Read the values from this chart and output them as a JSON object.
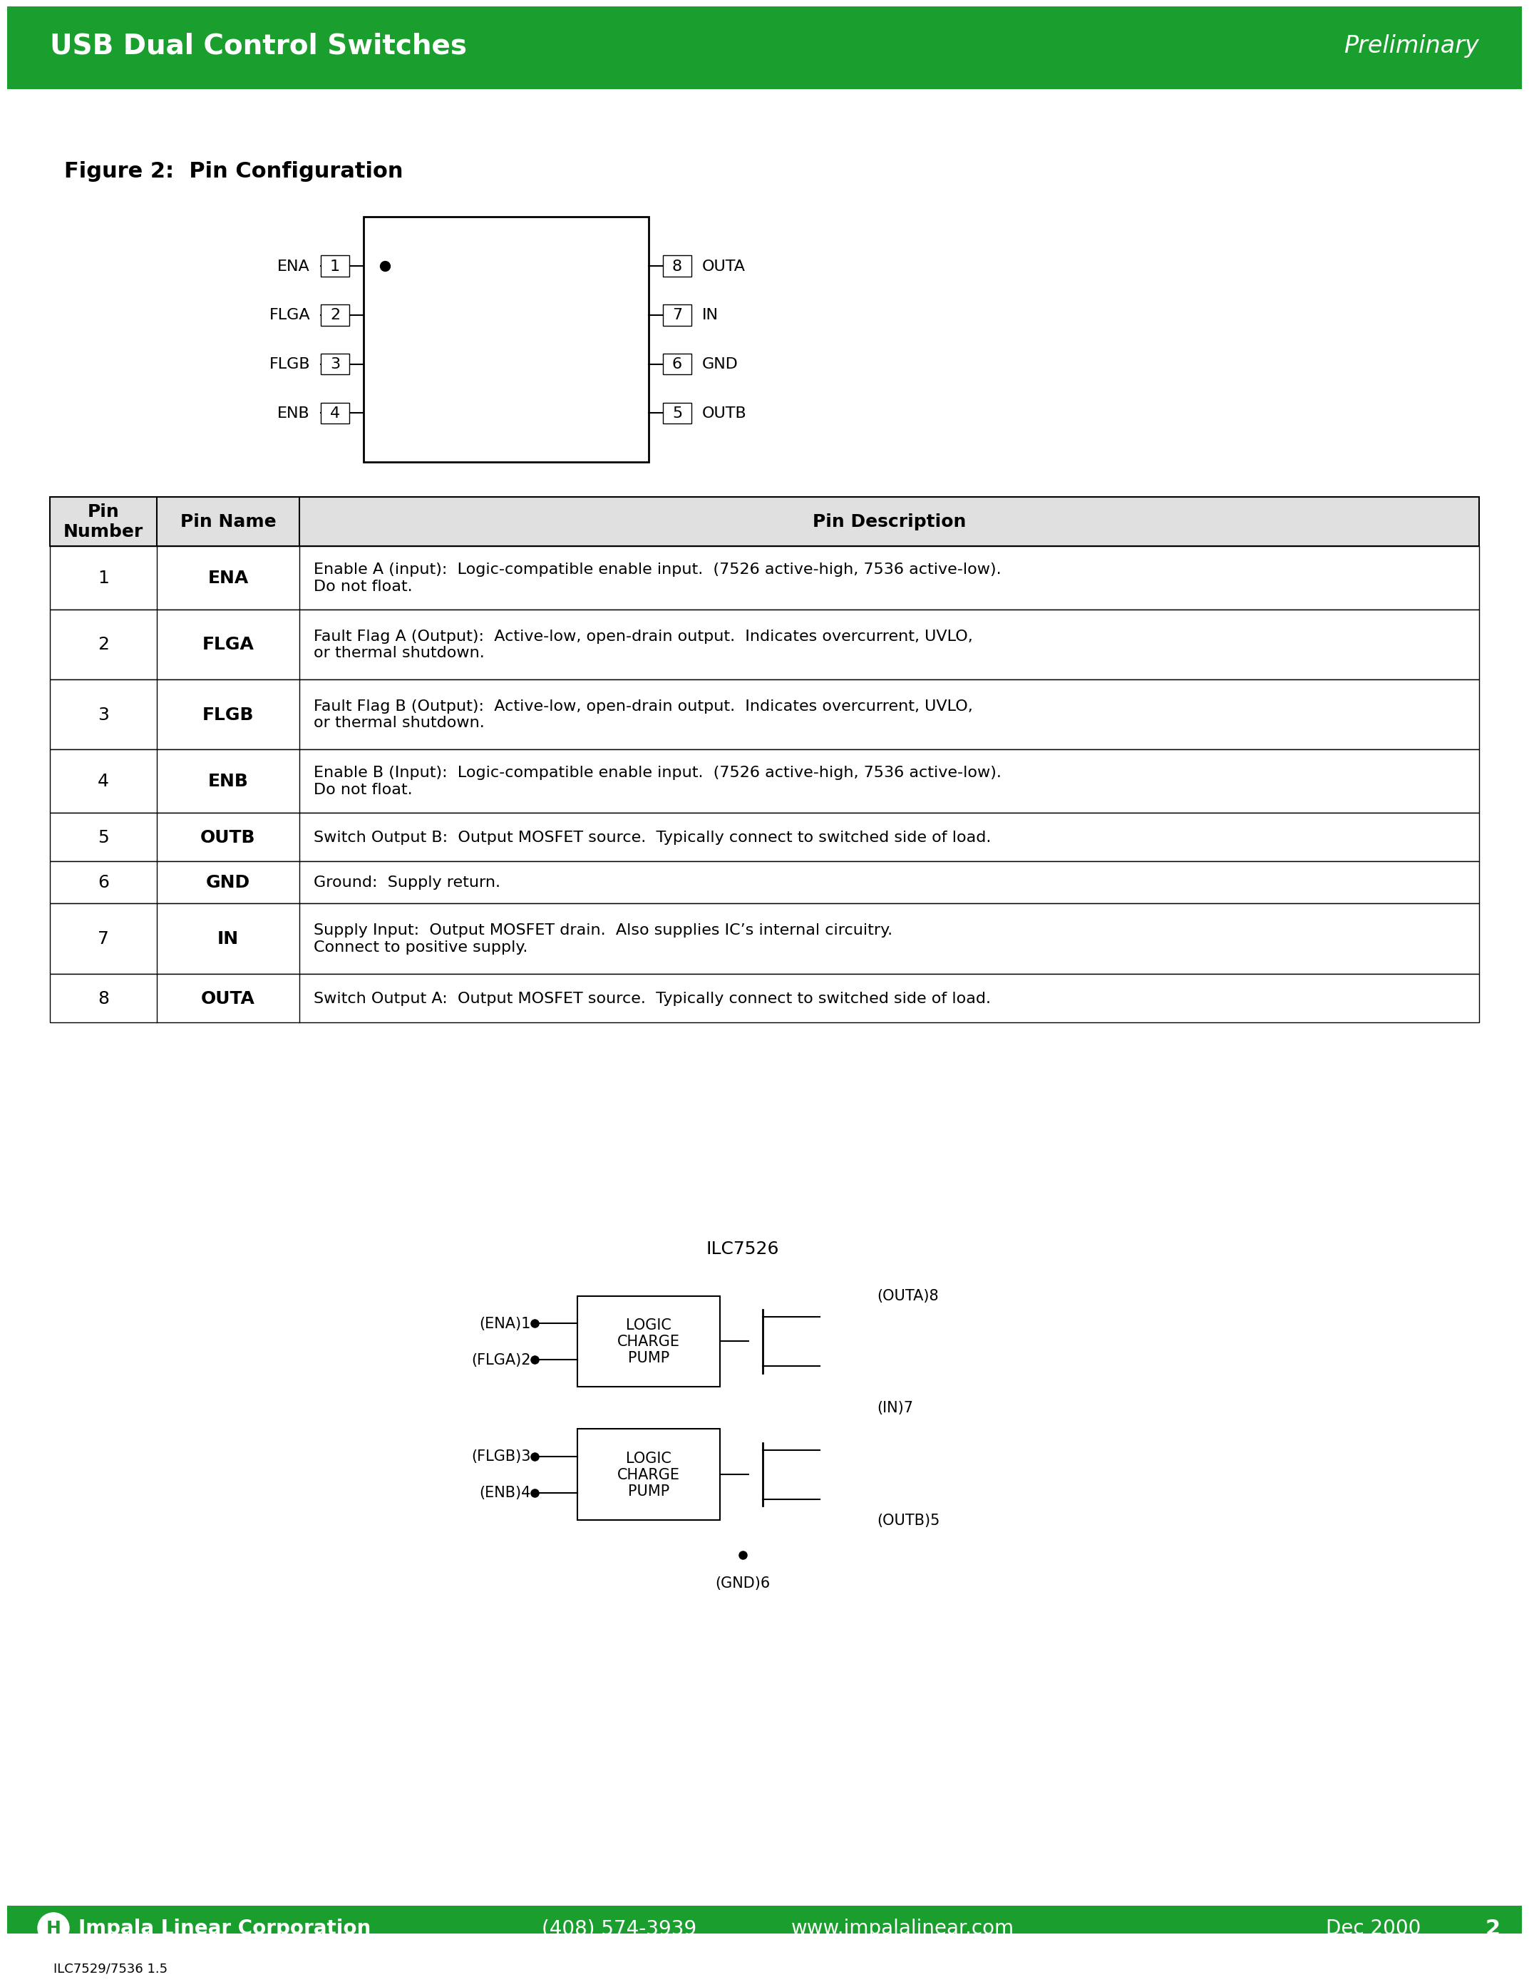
{
  "page_bg": "#ffffff",
  "header_bg": "#1a9e2e",
  "header_text": "USB Dual Control Switches",
  "header_right": "Preliminary",
  "header_text_color": "#ffffff",
  "footer_bg": "#1a9e2e",
  "footer_text_color": "#ffffff",
  "footer_left": "Impala Linear Corporation",
  "footer_center1": "(408) 574-3939",
  "footer_center2": "www.impalalinear.com",
  "footer_right": "Dec 2000",
  "footer_page": "2",
  "footer_small": "ILC7529/7536 1.5",
  "figure_title": "Figure 2:  Pin Configuration",
  "pin_table_headers": [
    "Pin\nNumber",
    "Pin Name",
    "Pin Description"
  ],
  "pin_data": [
    [
      "1",
      "ENA",
      "Enable A (input):  Logic-compatible enable input.  (7526 active-high, 7536 active-low).\nDo not float."
    ],
    [
      "2",
      "FLGA",
      "Fault Flag A (Output):  Active-low, open-drain output.  Indicates overcurrent, UVLO,\nor thermal shutdown."
    ],
    [
      "3",
      "FLGB",
      "Fault Flag B (Output):  Active-low, open-drain output.  Indicates overcurrent, UVLO,\nor thermal shutdown."
    ],
    [
      "4",
      "ENB",
      "Enable B (Input):  Logic-compatible enable input.  (7526 active-high, 7536 active-low).\nDo not float."
    ],
    [
      "5",
      "OUTB",
      "Switch Output B:  Output MOSFET source.  Typically connect to switched side of load."
    ],
    [
      "6",
      "GND",
      "Ground:  Supply return."
    ],
    [
      "7",
      "IN",
      "Supply Input:  Output MOSFET drain.  Also supplies IC’s internal circuitry.\nConnect to positive supply."
    ],
    [
      "8",
      "OUTA",
      "Switch Output A:  Output MOSFET source.  Typically connect to switched side of load."
    ]
  ],
  "schematic_title": "ILC7526",
  "left_pins": [
    "(ENA)1",
    "(FLGA)2",
    "(FLGB)3",
    "(ENB)4"
  ],
  "right_pins_top": "(OUTA)8",
  "right_pin_mid": "(IN)7",
  "right_pin_bot": "(OUTB)5",
  "bottom_pin": "(GND)6",
  "block1_label": "LOGIC\nCHARGE\nPUMP",
  "block2_label": "LOGIC\nCHARGE\nPUMP"
}
